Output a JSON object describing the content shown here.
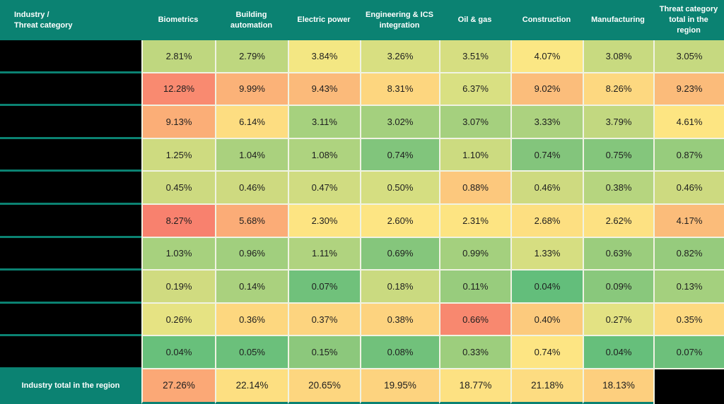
{
  "colors": {
    "teal": "#0b8272",
    "grid_line": "#f0f3e3",
    "cell_text": "#1e1e1e",
    "header_text": "#ffffff",
    "redacted": "#000000"
  },
  "chart_data": {
    "type": "heatmap",
    "corner_label": "Industry /\nThreat category",
    "unit": "percent",
    "row_labels_redacted": true,
    "columns": [
      "Biometrics",
      "Building automation",
      "Electric power",
      "Engineering & ICS integration",
      "Oil & gas",
      "Construction",
      "Manufacturing",
      "Threat category total in the region"
    ],
    "rows": [
      {
        "label": "",
        "redacted": true,
        "values": [
          2.81,
          2.79,
          3.84,
          3.26,
          3.51,
          4.07,
          3.08,
          3.05
        ],
        "cell_colors": [
          "#bfd77f",
          "#bed77f",
          "#f3e783",
          "#d8df81",
          "#d6de81",
          "#fbe784",
          "#c8da80",
          "#c6d980"
        ]
      },
      {
        "label": "",
        "redacted": true,
        "values": [
          12.28,
          9.99,
          9.43,
          8.31,
          6.37,
          9.02,
          8.26,
          9.23
        ],
        "cell_colors": [
          "#f98a70",
          "#fbb278",
          "#fbba7a",
          "#fdd67f",
          "#d9e082",
          "#fbbd7b",
          "#fdd880",
          "#fbbb7a"
        ]
      },
      {
        "label": "",
        "redacted": true,
        "values": [
          9.13,
          6.14,
          3.11,
          3.02,
          3.07,
          3.33,
          3.79,
          4.61
        ],
        "cell_colors": [
          "#fbae77",
          "#fddd81",
          "#a6d17e",
          "#a4d07e",
          "#a5d07e",
          "#acd27f",
          "#c2d880",
          "#fde582"
        ]
      },
      {
        "label": "",
        "redacted": true,
        "values": [
          1.25,
          1.04,
          1.08,
          0.74,
          1.1,
          0.74,
          0.75,
          0.87
        ],
        "cell_colors": [
          "#cedb80",
          "#aad17e",
          "#aed37f",
          "#81c57c",
          "#ccdb80",
          "#83c57c",
          "#84c67c",
          "#97cc7d"
        ]
      },
      {
        "label": "",
        "redacted": true,
        "values": [
          0.45,
          0.46,
          0.47,
          0.5,
          0.88,
          0.46,
          0.38,
          0.46
        ],
        "cell_colors": [
          "#cdda80",
          "#ceda80",
          "#d0dc81",
          "#d5de81",
          "#fcc87d",
          "#ceda80",
          "#b6d57f",
          "#cdda80"
        ]
      },
      {
        "label": "",
        "redacted": true,
        "values": [
          8.27,
          5.68,
          2.3,
          2.6,
          2.31,
          2.68,
          2.62,
          4.17
        ],
        "cell_colors": [
          "#f8816e",
          "#fbac77",
          "#fde482",
          "#fde583",
          "#fde482",
          "#fddf81",
          "#fde182",
          "#fbbc7a"
        ]
      },
      {
        "label": "",
        "redacted": true,
        "values": [
          1.03,
          0.96,
          1.11,
          0.69,
          0.99,
          1.33,
          0.63,
          0.82
        ],
        "cell_colors": [
          "#a7d17e",
          "#a1cf7e",
          "#b0d37f",
          "#85c67c",
          "#a4d07e",
          "#d6de81",
          "#9bcd7d",
          "#96cb7d"
        ]
      },
      {
        "label": "",
        "redacted": true,
        "values": [
          0.19,
          0.14,
          0.07,
          0.18,
          0.11,
          0.04,
          0.09,
          0.13
        ],
        "cell_colors": [
          "#d0db80",
          "#aad17e",
          "#70c17b",
          "#cada80",
          "#98cc7d",
          "#63be7b",
          "#89c87c",
          "#a4d07e"
        ]
      },
      {
        "label": "",
        "redacted": true,
        "values": [
          0.26,
          0.36,
          0.37,
          0.38,
          0.66,
          0.4,
          0.27,
          0.35
        ],
        "cell_colors": [
          "#e6e383",
          "#fdd77f",
          "#fdd47f",
          "#fdd37f",
          "#f8886f",
          "#fcca7d",
          "#e3e283",
          "#fdd980"
        ]
      },
      {
        "label": "",
        "redacted": true,
        "values": [
          0.04,
          0.05,
          0.15,
          0.08,
          0.33,
          0.74,
          0.04,
          0.07
        ],
        "cell_colors": [
          "#68c07b",
          "#6bc07b",
          "#8cc87c",
          "#71c17b",
          "#9dce7d",
          "#fde583",
          "#66bf7b",
          "#6dc07b"
        ]
      }
    ],
    "footer": {
      "label": "Industry total in the region",
      "values": [
        27.26,
        22.14,
        20.65,
        19.95,
        18.77,
        21.18,
        18.13
      ],
      "cell_colors": [
        "#fba876",
        "#fddf81",
        "#fdd67f",
        "#fdd37f",
        "#fde182",
        "#fddc81",
        "#fdcf7e"
      ],
      "last_cell_redacted": true
    }
  }
}
